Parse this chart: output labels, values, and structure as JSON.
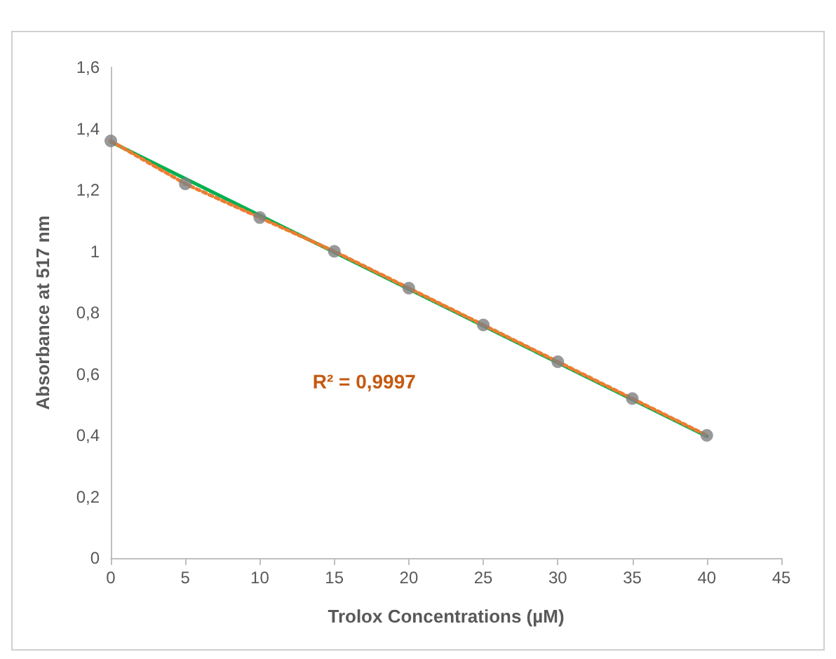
{
  "chart_data": {
    "type": "line",
    "xlabel": "Trolox Concentrations (µM)",
    "ylabel": "Absorbance at 517 nm",
    "annotations": [
      "R² = 0,9997"
    ],
    "xlim": [
      0,
      45
    ],
    "xticks": [
      0,
      5,
      10,
      15,
      20,
      25,
      30,
      35,
      40,
      45
    ],
    "ylim": [
      0,
      1.6
    ],
    "yticks": [
      0,
      {
        "value": 0.2,
        "label": "0,2"
      },
      {
        "value": 0.4,
        "label": "0,4"
      },
      {
        "value": 0.6,
        "label": "0,6"
      },
      {
        "value": 0.8,
        "label": "0,8"
      },
      1,
      {
        "value": 1.2,
        "label": "1,2"
      },
      {
        "value": 1.4,
        "label": "1,4"
      },
      {
        "value": 1.6,
        "label": "1,6"
      }
    ],
    "grid": false,
    "series": [
      {
        "type": "line",
        "color": "#00b050",
        "line_style": "solid",
        "marker": "none",
        "x": [
          0,
          40
        ],
        "values": [
          1.357,
          0.397
        ]
      },
      {
        "type": "line",
        "color": "#ed7d31",
        "line_style": "dotted",
        "marker": "none",
        "x": [
          0,
          5,
          10,
          15,
          20,
          25,
          30,
          35,
          40
        ],
        "values": [
          1.36,
          1.22,
          1.11,
          1.0,
          0.88,
          0.76,
          0.64,
          0.52,
          0.4
        ]
      },
      {
        "type": "scatter",
        "color": "#7f7f7f",
        "marker": "circle",
        "x": [
          0,
          5,
          10,
          15,
          20,
          25,
          30,
          35,
          40
        ],
        "values": [
          1.36,
          1.22,
          1.11,
          1.0,
          0.88,
          0.76,
          0.64,
          0.52,
          0.4
        ]
      }
    ]
  }
}
